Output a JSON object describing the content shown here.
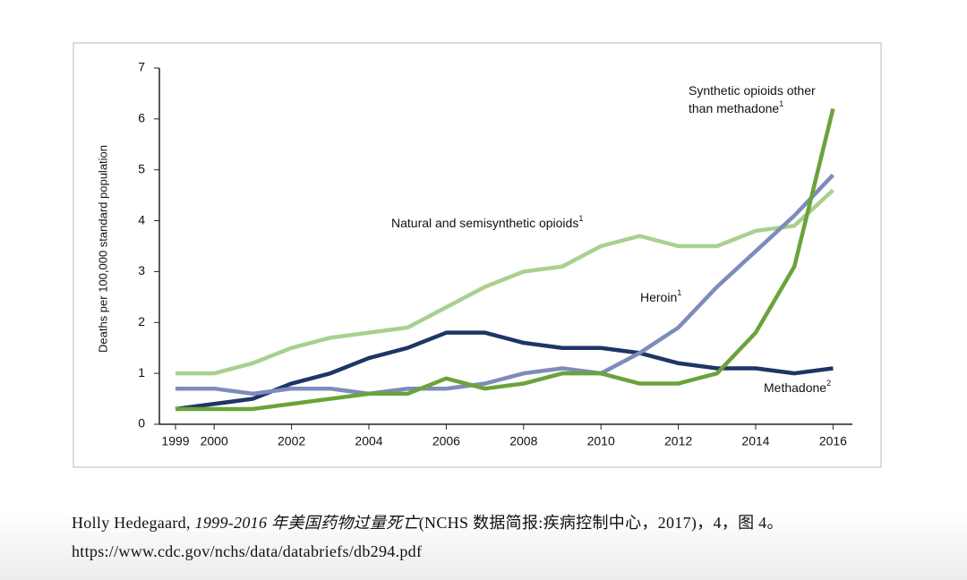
{
  "chart_data": {
    "type": "line",
    "y_label": "Deaths per 100,000 standard population",
    "x": [
      1999,
      2000,
      2001,
      2002,
      2003,
      2004,
      2005,
      2006,
      2007,
      2008,
      2009,
      2010,
      2011,
      2012,
      2013,
      2014,
      2015,
      2016
    ],
    "xlim": [
      1998.5,
      2016.5
    ],
    "xticks": [
      1999,
      2000,
      2002,
      2004,
      2006,
      2008,
      2010,
      2012,
      2014,
      2016
    ],
    "ylim": [
      0,
      7
    ],
    "yticks": [
      0,
      1,
      2,
      3,
      4,
      5,
      6,
      7
    ],
    "series": [
      {
        "name": "Natural and semisynthetic opioids",
        "marker": "1",
        "color": "#a9d08e",
        "values": [
          1.0,
          1.0,
          1.2,
          1.5,
          1.7,
          1.8,
          1.9,
          2.3,
          2.7,
          3.0,
          3.1,
          3.5,
          3.7,
          3.5,
          3.5,
          3.8,
          3.9,
          4.6
        ]
      },
      {
        "name": "Methadone",
        "marker": "2",
        "color": "#1f3566",
        "values": [
          0.3,
          0.4,
          0.5,
          0.8,
          1.0,
          1.3,
          1.5,
          1.8,
          1.8,
          1.6,
          1.5,
          1.5,
          1.4,
          1.2,
          1.1,
          1.1,
          1.0,
          1.1
        ]
      },
      {
        "name": "Heroin",
        "marker": "1",
        "color": "#7d8cba",
        "values": [
          0.7,
          0.7,
          0.6,
          0.7,
          0.7,
          0.6,
          0.7,
          0.7,
          0.8,
          1.0,
          1.1,
          1.0,
          1.4,
          1.9,
          2.7,
          3.4,
          4.1,
          4.9
        ]
      },
      {
        "name": "Synthetic opioids other than methadone",
        "marker": "1",
        "color": "#6aa33b",
        "values": [
          0.3,
          0.3,
          0.3,
          0.4,
          0.5,
          0.6,
          0.6,
          0.9,
          0.7,
          0.8,
          1.0,
          1.0,
          0.8,
          0.8,
          1.0,
          1.8,
          3.1,
          6.2
        ]
      }
    ]
  },
  "caption": {
    "author": "Holly Hedegaard, ",
    "title": "1999-2016 年美国药物过量死亡",
    "source": "(NCHS 数据简报:疾病控制中心，2017)，4，图 4。",
    "url": "https://www.cdc.gov/nchs/data/databriefs/db294.pdf"
  }
}
